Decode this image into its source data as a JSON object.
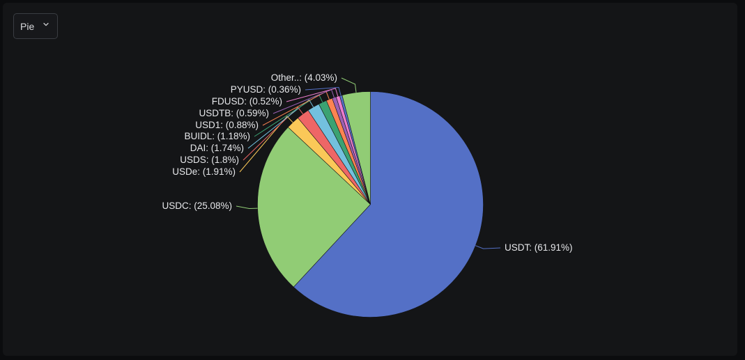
{
  "toolbar": {
    "chart_type_label": "Pie",
    "chart_type_icon": "chevron-down-icon"
  },
  "chart_data": {
    "type": "pie",
    "title": "",
    "start_angle_deg": 90,
    "direction": "clockwise",
    "slices": [
      {
        "name": "USDT",
        "value": 61.91,
        "label": "USDT: (61.91%)",
        "color": "#5470c6"
      },
      {
        "name": "USDC",
        "value": 25.08,
        "label": "USDC: (25.08%)",
        "color": "#91cc75"
      },
      {
        "name": "USDe",
        "value": 1.91,
        "label": "USDe: (1.91%)",
        "color": "#fac858"
      },
      {
        "name": "USDS",
        "value": 1.8,
        "label": "USDS: (1.8%)",
        "color": "#ee6666"
      },
      {
        "name": "DAI",
        "value": 1.74,
        "label": "DAI: (1.74%)",
        "color": "#73c0de"
      },
      {
        "name": "BUIDL",
        "value": 1.18,
        "label": "BUIDL: (1.18%)",
        "color": "#3ba272"
      },
      {
        "name": "USD1",
        "value": 0.88,
        "label": "USD1: (0.88%)",
        "color": "#fc8452"
      },
      {
        "name": "USDTB",
        "value": 0.59,
        "label": "USDTB: (0.59%)",
        "color": "#9a60b4"
      },
      {
        "name": "FDUSD",
        "value": 0.52,
        "label": "FDUSD: (0.52%)",
        "color": "#ea7ccc"
      },
      {
        "name": "PYUSD",
        "value": 0.36,
        "label": "PYUSD: (0.36%)",
        "color": "#5470c6"
      },
      {
        "name": "Other..",
        "value": 4.03,
        "label": "Other..: (4.03%)",
        "color": "#91cc75"
      }
    ]
  }
}
